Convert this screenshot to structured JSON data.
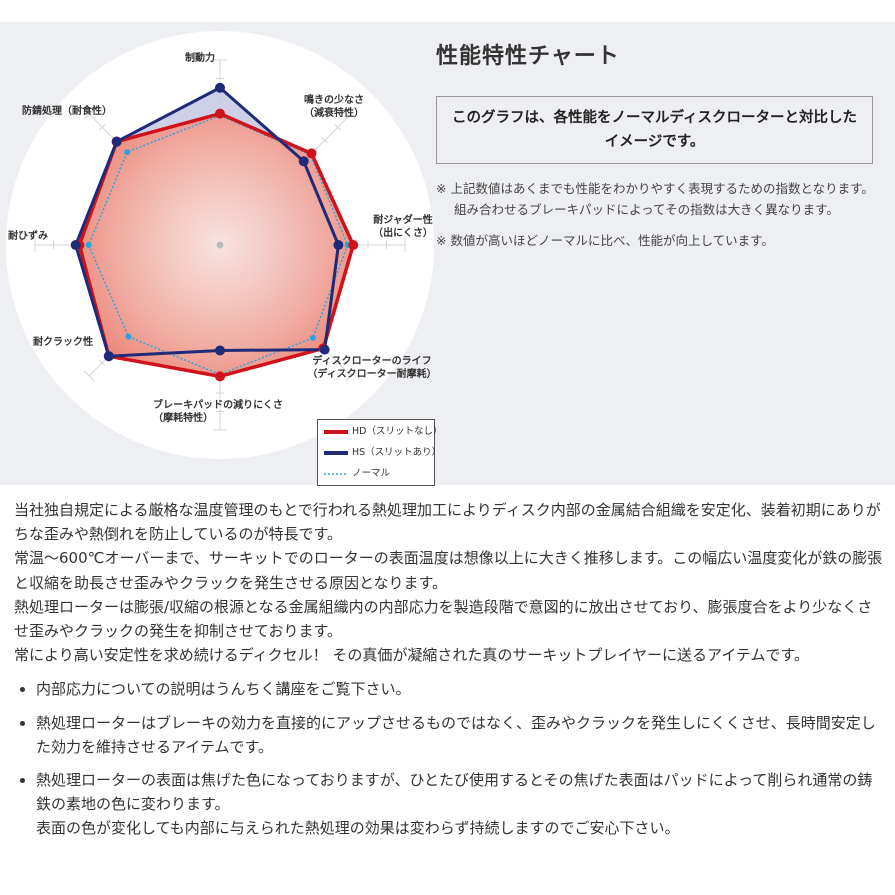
{
  "chart_data": {
    "type": "radar",
    "title": "性能特性チャート",
    "axes": [
      "制動力",
      "鳴きの少なさ（減衰特性）",
      "耐ジャダー性（出にくさ）",
      "ディスクローターのライフ（ディスクローター耐摩耗）",
      "ブレーキパッドの減りにくさ（摩耗特性）",
      "耐クラック性",
      "耐ひずみ",
      "防錆処理（耐食性）"
    ],
    "axis_labels": [
      [
        "制動力"
      ],
      [
        "鳴きの少なさ",
        "（減衰特性）"
      ],
      [
        "耐ジャダー性",
        "（出にくさ）"
      ],
      [
        "ディスクローターのライフ",
        "（ディスクローター耐摩耗）"
      ],
      [
        "ブレーキパッドの減りにくさ",
        "（摩耗特性）"
      ],
      [
        "耐クラック性"
      ],
      [
        "耐ひずみ"
      ],
      [
        "防錆処理（耐食性）"
      ]
    ],
    "range": [
      0,
      10
    ],
    "grid": true,
    "legend_position": "bottom-right",
    "series": [
      {
        "name": "HD（スリットなし）",
        "color": "#d0121b",
        "style": "solid",
        "values": [
          7.1,
          7.0,
          7.2,
          7.9,
          7.1,
          8.5,
          7.6,
          7.9
        ]
      },
      {
        "name": "HS（スリットあり）",
        "color": "#1f2a78",
        "style": "solid",
        "values": [
          8.5,
          6.4,
          6.4,
          8.0,
          5.7,
          8.5,
          7.8,
          7.9
        ]
      },
      {
        "name": "ノーマル",
        "color": "#2aa3de",
        "style": "dotted",
        "values": [
          7.0,
          6.9,
          6.9,
          7.1,
          7.0,
          7.0,
          7.1,
          7.1
        ]
      }
    ]
  },
  "header": {
    "title": "性能特性チャート",
    "box_text": "このグラフは、各性能をノーマルディスクローターと対比したイメージです。",
    "notes": [
      "※ 上記数値はあくまでも性能をわかりやすく表現するための指数となります。組み合わせるブレーキパッドによってその指数は大きく異なります。",
      "※ 数値が高いほどノーマルに比べ、性能が向上しています。"
    ]
  },
  "body": {
    "paragraphs": [
      "当社独自規定による厳格な温度管理のもとで行われる熱処理加工によりディスク内部の金属結合組織を安定化、装着初期にありがちな歪みや熱倒れを防止しているのが特長です。",
      "常温～600℃オーバーまで、サーキットでのローターの表面温度は想像以上に大きく推移します。この幅広い温度変化が鉄の膨張と収縮を助長させ歪みやクラックを発生させる原因となります。",
      "熱処理ローターは膨張/収縮の根源となる金属組織内の内部応力を製造段階で意図的に放出させており、膨張度合をより少なくさせ歪みやクラックの発生を抑制させております。",
      "常により高い安定性を求め続けるディクセル！ その真価が凝縮された真のサーキットプレイヤーに送るアイテムです。"
    ],
    "bullets": [
      "内部応力についての説明はうんちく講座をご覧下さい。",
      "熱処理ローターはブレーキの効力を直接的にアップさせるものではなく、歪みやクラックを発生しにくくさせ、長時間安定した効力を維持させるアイテムです。",
      "熱処理ローターの表面は焦げた色になっておりますが、ひとたび使用するとその焦げた表面はパッドによって削られ通常の鋳鉄の素地の色に変わります。",
      "表面の色が変化しても内部に与えられた熱処理の効果は変わらず持続しますのでご安心下さい。"
    ]
  }
}
